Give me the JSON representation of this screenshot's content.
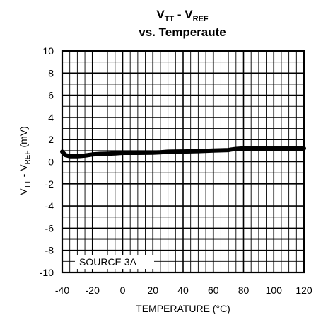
{
  "chart_data": {
    "type": "line",
    "title_main": "V",
    "title_sub1": "TT",
    "title_mid": " - V",
    "title_sub2": "REF",
    "title_line2": "vs. Temperaute",
    "xlabel": "TEMPERATURE (°C)",
    "ylabel_main": "V",
    "ylabel_sub1": "TT",
    "ylabel_mid": " - V",
    "ylabel_sub2": "REF",
    "ylabel_unit": " (mV)",
    "xlim": [
      -40,
      120
    ],
    "ylim": [
      -10,
      10
    ],
    "x_ticks": [
      -40,
      -20,
      0,
      20,
      40,
      60,
      80,
      100,
      120
    ],
    "y_ticks": [
      10,
      8,
      6,
      4,
      2,
      0,
      -2,
      -4,
      -6,
      -8,
      -10
    ],
    "grid": true,
    "annotation": "SOURCE 3A",
    "series": [
      {
        "x": [
          -40,
          -38,
          -35,
          -30,
          -25,
          -20,
          -15,
          -10,
          -5,
          0,
          10,
          20,
          25,
          30,
          40,
          50,
          60,
          70,
          72,
          75,
          80,
          90,
          100,
          110,
          120
        ],
        "y": [
          0.9,
          0.6,
          0.5,
          0.5,
          0.55,
          0.65,
          0.7,
          0.72,
          0.75,
          0.8,
          0.8,
          0.82,
          0.85,
          0.9,
          0.92,
          0.95,
          1.0,
          1.05,
          1.1,
          1.15,
          1.2,
          1.2,
          1.2,
          1.2,
          1.2
        ]
      }
    ]
  }
}
